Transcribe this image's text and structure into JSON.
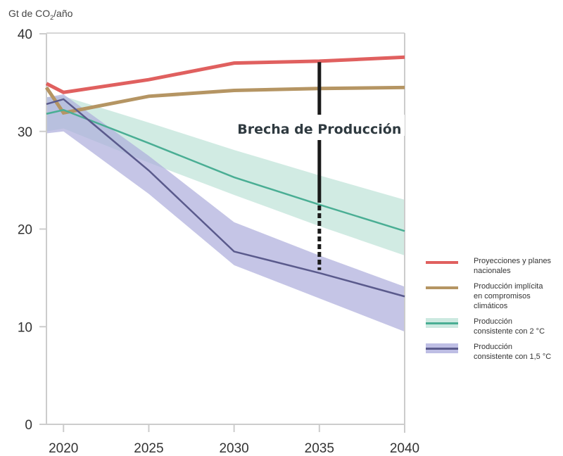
{
  "chart_data": {
    "type": "line",
    "title": "",
    "ylabel": "Gt de CO₂/año",
    "xlabel": "",
    "xlim": [
      2019,
      2040
    ],
    "ylim": [
      0,
      40
    ],
    "x_ticks": [
      2020,
      2025,
      2030,
      2035,
      2040
    ],
    "x_tick_labels": [
      "2020",
      "2025",
      "2030",
      "2035",
      "2040"
    ],
    "y_ticks": [
      0,
      10,
      20,
      30,
      40
    ],
    "y_tick_labels": [
      "0",
      "10",
      "20",
      "30",
      "40"
    ],
    "grid": false,
    "legend_position": "right",
    "x": [
      2019,
      2020,
      2025,
      2030,
      2035,
      2040
    ],
    "series": [
      {
        "name": "Proyecciones y planes nacionales",
        "label_lines": [
          "Proyecciones y planes",
          "nacionales"
        ],
        "color": "#e0605f",
        "values": [
          34.9,
          34.0,
          35.3,
          37.0,
          37.2,
          37.6
        ]
      },
      {
        "name": "Producción implícita en compromisos climáticos",
        "label_lines": [
          "Producción implícita",
          "en compromisos",
          "climáticos"
        ],
        "color": "#b59563",
        "values": [
          34.5,
          31.9,
          33.6,
          34.2,
          34.4,
          34.5
        ]
      },
      {
        "name": "Producción consistente con 2 °C",
        "label_lines": [
          "Producción",
          "consistente con 2 °C"
        ],
        "color": "#4aae94",
        "band_color": "#bfe3d8",
        "values": [
          31.8,
          32.2,
          28.8,
          25.3,
          22.5,
          19.8
        ],
        "band_upper": [
          33.5,
          33.6,
          30.9,
          28.1,
          25.5,
          23.0
        ],
        "band_lower": [
          30.0,
          30.3,
          26.8,
          23.5,
          20.3,
          17.3
        ]
      },
      {
        "name": "Producción consistente con 1,5 °C",
        "label_lines": [
          "Producción",
          "consistente con 1,5 °C"
        ],
        "color": "#5a5a8c",
        "band_color": "#aeaedd",
        "values": [
          32.8,
          33.3,
          26.0,
          17.7,
          15.5,
          13.1
        ],
        "band_upper": [
          33.5,
          33.8,
          27.5,
          20.7,
          17.3,
          14.1
        ],
        "band_lower": [
          29.8,
          30.0,
          23.6,
          16.3,
          12.9,
          9.5
        ]
      }
    ],
    "annotations": [
      {
        "text": "Brecha de Producción",
        "x": 2035,
        "solid_from": 37.1,
        "solid_to": 22.7,
        "dashed_from": 22.7,
        "dashed_to": 15.8
      }
    ]
  }
}
